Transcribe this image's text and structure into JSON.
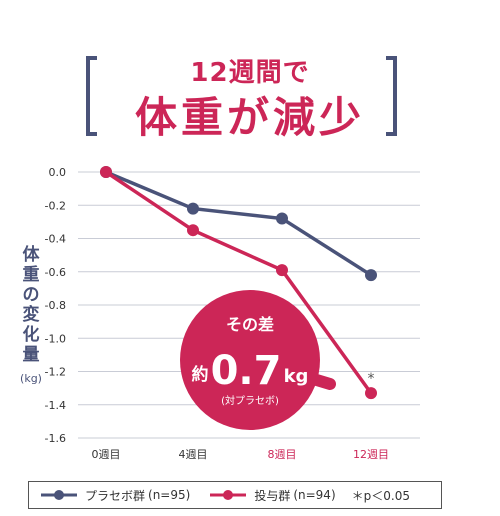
{
  "header": {
    "subtitle": "12週間で",
    "title": "体重が減少"
  },
  "chart_data": {
    "type": "line",
    "categories": [
      "0週目",
      "4週目",
      "8週目",
      "12週目"
    ],
    "ylabel": "体重の変化量",
    "yunit": "(kg)",
    "ylim": [
      -1.6,
      0.0
    ],
    "yticks": [
      "0.0",
      "-0.2",
      "-0.4",
      "-0.6",
      "-0.8",
      "-1.0",
      "-1.2",
      "-1.4",
      "-1.6"
    ],
    "grid": true,
    "highlight_categories": [
      "8週目",
      "12週目"
    ],
    "series": [
      {
        "name": "プラセボ群",
        "n": "(n=95)",
        "color": "#4a5379",
        "values": [
          0.0,
          -0.22,
          -0.28,
          -0.62
        ]
      },
      {
        "name": "投与群",
        "n": "(n=94)",
        "color": "#cc2657",
        "values": [
          0.0,
          -0.35,
          -0.59,
          -1.33
        ]
      }
    ],
    "annotations": {
      "asterisk": "*",
      "callout_line1": "その差",
      "callout_prefix": "約",
      "callout_value": "0.7",
      "callout_unit": "kg",
      "callout_note": "(対プラセボ)"
    },
    "significance": "＊p＜0.05",
    "legend_position": "bottom"
  },
  "colors": {
    "placebo": "#4a5379",
    "treatment": "#cc2657",
    "grid": "#c9ccd6",
    "axis_text": "#333333"
  }
}
